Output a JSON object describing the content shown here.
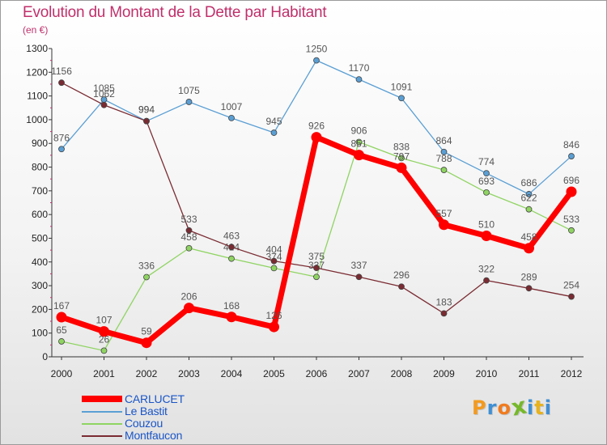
{
  "header": {
    "title": "Evolution du Montant de la Dette par Habitant",
    "subtitle": "(en €)"
  },
  "logo": {
    "text": "Proxiti"
  },
  "chart_data": {
    "type": "line",
    "title": "Evolution du Montant de la Dette par Habitant",
    "subtitle": "(en €)",
    "xlabel": "",
    "ylabel": "",
    "ylim": [
      0,
      1300
    ],
    "yticks": [
      0,
      100,
      200,
      300,
      400,
      500,
      600,
      700,
      800,
      900,
      1000,
      1100,
      1200,
      1300
    ],
    "categories": [
      "2000",
      "2001",
      "2002",
      "2003",
      "2004",
      "2005",
      "2006",
      "2007",
      "2008",
      "2009",
      "2010",
      "2011",
      "2012"
    ],
    "grid": false,
    "legend_position": "bottom-left",
    "series": [
      {
        "name": "Le Bastit",
        "color": "#5a9fd4",
        "values": [
          876,
          1085,
          994,
          1075,
          1007,
          945,
          1250,
          1170,
          1091,
          864,
          774,
          686,
          846
        ]
      },
      {
        "name": "Couzou",
        "color": "#8fd462",
        "values": [
          65,
          26,
          336,
          458,
          414,
          374,
          337,
          906,
          838,
          788,
          693,
          622,
          533
        ]
      },
      {
        "name": "Montfaucon",
        "color": "#7a2b32",
        "values": [
          1156,
          1062,
          994,
          533,
          463,
          404,
          375,
          337,
          296,
          183,
          322,
          289,
          254
        ]
      },
      {
        "name": "CARLUCET",
        "color": "#ff0000",
        "values": [
          167,
          107,
          59,
          206,
          168,
          126,
          926,
          851,
          797,
          557,
          510,
          458,
          696
        ]
      }
    ]
  }
}
